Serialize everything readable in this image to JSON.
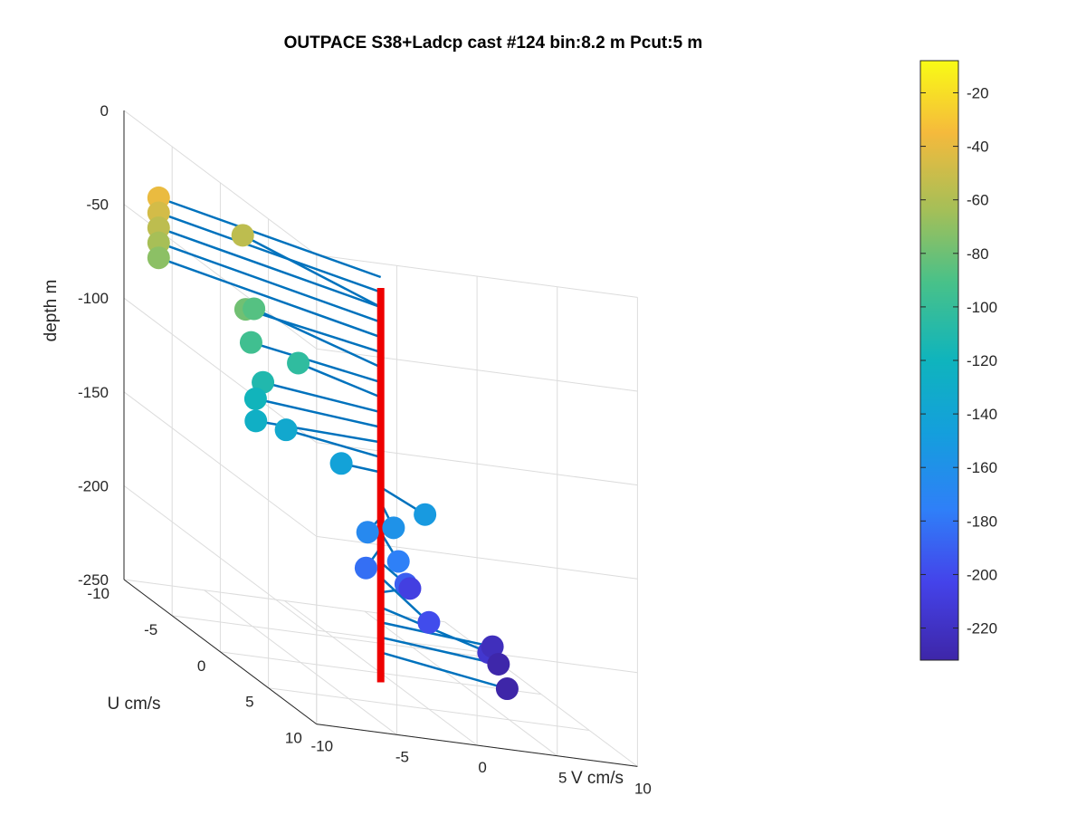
{
  "chart_data": {
    "type": "scatter3d",
    "title": "OUTPACE S38+Ladcp cast #124 bin:8.2 m  Pcut:5 m",
    "xlabel": "V cm/s",
    "ylabel": "U cm/s",
    "zlabel": "depth m",
    "xlim": [
      -10,
      10
    ],
    "ylim": [
      -10,
      10
    ],
    "zlim": [
      -250,
      0
    ],
    "xticks": [
      "-10",
      "-5",
      "0",
      "5",
      "10"
    ],
    "yticks": [
      "-10",
      "-5",
      "0",
      "5",
      "10"
    ],
    "zticks": [
      "0",
      "-50",
      "-100",
      "-150",
      "-200",
      "-250"
    ],
    "grid": true,
    "colorbar": {
      "range": [
        -232,
        -8
      ],
      "ticks": [
        "-20",
        "-40",
        "-60",
        "-80",
        "-100",
        "-120",
        "-140",
        "-160",
        "-180",
        "-200",
        "-220"
      ],
      "tick_values": [
        -20,
        -40,
        -60,
        -80,
        -100,
        -120,
        -140,
        -160,
        -180,
        -200,
        -220
      ]
    },
    "stem_color": "#ee0000",
    "line_color": "#0072bd",
    "points": [
      {
        "v": -8.8,
        "u": -8.4,
        "depth": -39
      },
      {
        "v": -8.8,
        "u": -8.4,
        "depth": -47
      },
      {
        "v": -8.8,
        "u": -8.4,
        "depth": -55
      },
      {
        "v": -8.8,
        "u": -8.4,
        "depth": -63
      },
      {
        "v": -8.8,
        "u": -8.4,
        "depth": -71
      },
      {
        "v": -3.2,
        "u": -9.0,
        "depth": -55
      },
      {
        "v": -5.9,
        "u": -4.2,
        "depth": -79
      },
      {
        "v": -3.7,
        "u": -7.0,
        "depth": -87
      },
      {
        "v": -5.8,
        "u": -3.8,
        "depth": -95
      },
      {
        "v": -2.8,
        "u": -3.9,
        "depth": -103
      },
      {
        "v": -5.9,
        "u": -2.4,
        "depth": -111
      },
      {
        "v": -6.6,
        "u": -2.0,
        "depth": -119
      },
      {
        "v": -7.3,
        "u": -0.8,
        "depth": -127
      },
      {
        "v": -4.4,
        "u": -2.5,
        "depth": -135
      },
      {
        "v": -2.1,
        "u": -0.6,
        "depth": -143
      },
      {
        "v": 0.6,
        "u": 3.6,
        "depth": -151
      },
      {
        "v": -1.6,
        "u": 4.0,
        "depth": -159
      },
      {
        "v": -2.5,
        "u": 2.8,
        "depth": -167
      },
      {
        "v": -1.6,
        "u": 4.5,
        "depth": -175
      },
      {
        "v": -3.2,
        "u": 3.8,
        "depth": -183
      },
      {
        "v": -0.3,
        "u": 3.1,
        "depth": -191
      },
      {
        "v": -0.9,
        "u": 6.5,
        "depth": -199
      },
      {
        "v": 2.6,
        "u": -1.3,
        "depth": -207
      },
      {
        "v": 3.6,
        "u": 5.2,
        "depth": -215
      },
      {
        "v": 6.0,
        "u": 1.6,
        "depth": -223
      },
      {
        "v": 6.2,
        "u": 1.9,
        "depth": -231
      },
      {
        "v": 5.9,
        "u": 3.3,
        "depth": -239
      }
    ]
  }
}
